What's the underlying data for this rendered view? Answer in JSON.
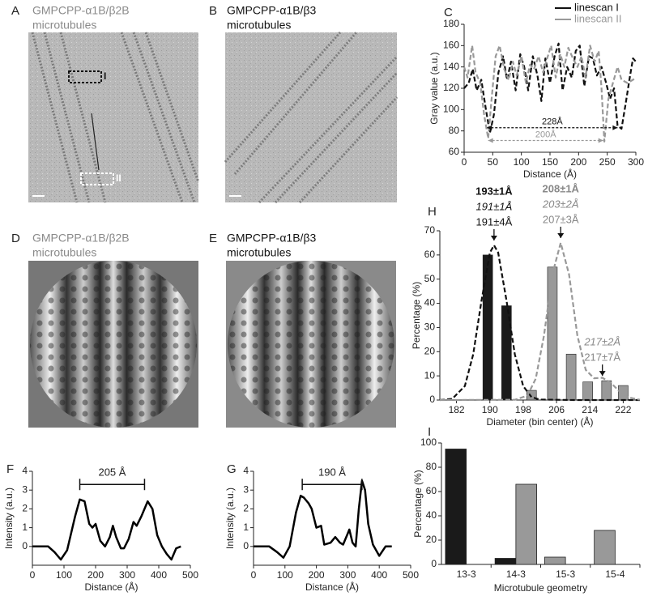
{
  "images": [
    {
      "label": "A",
      "title": [
        "GMPCPP-α1B/β2B",
        "microtubules"
      ],
      "markers": [
        "I",
        "II"
      ]
    },
    {
      "label": "B",
      "title": [
        "GMPCPP-α1B/β3",
        "microtubules"
      ]
    },
    {
      "label": "D",
      "title": [
        "GMPCPP-α1B/β2B",
        "microtubules"
      ]
    },
    {
      "label": "E",
      "title": [
        "GMPCPP-α1B/β3",
        "microtubules"
      ]
    }
  ],
  "chart_data": [
    {
      "type": "line",
      "label": "C",
      "xlabel": "Distance (Å)",
      "ylabel": "Gray value (a.u.)",
      "xlim": [
        0,
        300
      ],
      "ylim": [
        60,
        180
      ],
      "xticks": [
        0,
        50,
        100,
        150,
        200,
        250,
        300
      ],
      "yticks": [
        60,
        80,
        100,
        120,
        140,
        160,
        180
      ],
      "legend": "top-right",
      "series": [
        {
          "name": "linescan I",
          "color": "#111111",
          "dashed": true,
          "x": [
            0,
            8,
            15,
            22,
            30,
            38,
            45,
            52,
            60,
            68,
            75,
            82,
            90,
            98,
            105,
            112,
            120,
            128,
            135,
            142,
            150,
            158,
            165,
            172,
            180,
            188,
            195,
            202,
            210,
            218,
            225,
            232,
            240,
            248,
            255,
            262,
            268,
            275,
            282,
            290,
            295,
            300
          ],
          "values": [
            120,
            125,
            138,
            118,
            128,
            100,
            78,
            95,
            135,
            150,
            128,
            145,
            118,
            152,
            140,
            118,
            150,
            132,
            108,
            148,
            125,
            150,
            162,
            118,
            140,
            130,
            155,
            160,
            122,
            150,
            148,
            132,
            140,
            125,
            110,
            120,
            85,
            82,
            105,
            132,
            148,
            145
          ]
        },
        {
          "name": "linescan II",
          "color": "#999999",
          "dashed": true,
          "x": [
            0,
            6,
            14,
            20,
            28,
            35,
            42,
            48,
            55,
            62,
            70,
            78,
            85,
            92,
            100,
            108,
            115,
            122,
            130,
            138,
            145,
            152,
            160,
            168,
            175,
            182,
            190,
            198,
            205,
            212,
            220,
            228,
            235,
            240,
            245,
            252,
            260,
            268,
            275,
            285,
            295,
            300
          ],
          "values": [
            140,
            130,
            160,
            135,
            125,
            95,
            73,
            110,
            150,
            160,
            138,
            128,
            145,
            132,
            150,
            125,
            142,
            138,
            150,
            135,
            148,
            160,
            130,
            152,
            140,
            158,
            148,
            140,
            150,
            130,
            160,
            145,
            155,
            120,
            70,
            110,
            125,
            140,
            128,
            125,
            128,
            130
          ]
        }
      ],
      "annotations": [
        {
          "text": "228Å",
          "color": "#111111",
          "x": [
            40,
            268
          ],
          "y": 83
        },
        {
          "text": "200Å",
          "color": "#999999",
          "x": [
            42,
            243
          ],
          "y": 71
        }
      ]
    },
    {
      "type": "line",
      "label": "F",
      "xlabel": "Distance (Å)",
      "ylabel": "Intensity (a.u.)",
      "xlim": [
        0,
        500
      ],
      "ylim": [
        -1,
        4
      ],
      "xticks": [
        0,
        100,
        200,
        300,
        400,
        500
      ],
      "yticks": [
        0,
        1,
        2,
        3,
        4
      ],
      "series": [
        {
          "color": "#000000",
          "x": [
            0,
            50,
            70,
            90,
            110,
            135,
            150,
            165,
            180,
            190,
            200,
            215,
            230,
            245,
            255,
            265,
            280,
            290,
            305,
            320,
            330,
            345,
            365,
            380,
            395,
            410,
            425,
            440,
            455,
            470
          ],
          "values": [
            0,
            0,
            -0.3,
            -0.7,
            -0.2,
            1.6,
            2.5,
            2.4,
            1.2,
            1.0,
            1.2,
            0.3,
            0,
            0.5,
            1.1,
            0.5,
            -0.1,
            -0.1,
            0.4,
            1.3,
            1.1,
            1.6,
            2.4,
            2.0,
            0.6,
            0,
            -0.4,
            -0.7,
            -0.1,
            0
          ]
        }
      ],
      "annotations": [
        {
          "text": "205 Å",
          "x": [
            150,
            355
          ],
          "y": 3.3
        }
      ]
    },
    {
      "type": "line",
      "label": "G",
      "xlabel": "Distance (Å)",
      "ylabel": "Intensity (a.u.)",
      "xlim": [
        0,
        500
      ],
      "ylim": [
        -1,
        4
      ],
      "xticks": [
        0,
        100,
        200,
        300,
        400,
        500
      ],
      "yticks": [
        0,
        1,
        2,
        3,
        4
      ],
      "series": [
        {
          "color": "#000000",
          "x": [
            0,
            50,
            75,
            95,
            115,
            135,
            150,
            160,
            175,
            185,
            200,
            215,
            225,
            245,
            260,
            275,
            285,
            300,
            305,
            315,
            325,
            335,
            345,
            355,
            365,
            380,
            400,
            420,
            440
          ],
          "values": [
            0,
            0,
            -0.3,
            -0.6,
            0,
            1.8,
            2.7,
            2.6,
            2.3,
            2.0,
            1.0,
            1.1,
            0.1,
            0.2,
            0.5,
            0.2,
            0.1,
            0.7,
            0.9,
            0.2,
            0.0,
            2.0,
            3.5,
            3.0,
            1.2,
            0.1,
            -0.5,
            0,
            0
          ]
        }
      ],
      "annotations": [
        {
          "text": "190 Å",
          "x": [
            155,
            345
          ],
          "y": 3.3
        }
      ]
    },
    {
      "type": "bar",
      "label": "H",
      "xlabel": "Diameter (bin center) (Å)",
      "ylabel": "Percentage (%)",
      "xlim": [
        178,
        226
      ],
      "ylim": [
        0,
        70
      ],
      "xticks": [
        182,
        190,
        198,
        206,
        214,
        222
      ],
      "yticks": [
        0,
        10,
        20,
        30,
        40,
        50,
        60,
        70
      ],
      "series": [
        {
          "kind": "bar",
          "color": "#1a1a1a",
          "x": [
            189.5,
            194
          ],
          "values": [
            60,
            39
          ]
        },
        {
          "kind": "bar",
          "color": "#999999",
          "x": [
            200,
            205,
            209.5,
            213.5,
            218,
            222
          ],
          "values": [
            4,
            55,
            19,
            7.5,
            8,
            6
          ]
        },
        {
          "kind": "line",
          "dashed": true,
          "color": "#111111",
          "x": [
            178,
            181,
            184,
            186,
            188,
            190,
            191,
            192,
            194,
            196,
            198,
            200,
            202,
            210,
            226
          ],
          "values": [
            0,
            0.5,
            5.8,
            18.9,
            41.2,
            61,
            64,
            61,
            41.2,
            18.9,
            5.8,
            1.2,
            0.2,
            0,
            0
          ]
        },
        {
          "kind": "line",
          "dashed": true,
          "color": "#999999",
          "x": [
            178,
            196,
            199,
            201,
            203,
            205,
            207,
            209,
            211,
            213,
            215,
            217,
            219,
            221,
            223,
            226
          ],
          "values": [
            0,
            0.1,
            1.8,
            8.8,
            26.7,
            52,
            65,
            52,
            26.7,
            12.5,
            9,
            9.2,
            7.2,
            3.7,
            1.2,
            0.1
          ]
        }
      ],
      "annotations": [
        {
          "text": [
            "193±1Å",
            "191±1Å",
            "191±4Å"
          ],
          "styles": [
            "bold",
            "italic",
            "normal"
          ],
          "color": "#111111",
          "x": 191,
          "y": 66
        },
        {
          "text": [
            "208±1Å",
            "203±2Å",
            "207±3Å"
          ],
          "styles": [
            "bold",
            "italic",
            "normal"
          ],
          "color": "#888888",
          "x": 207,
          "y": 67
        },
        {
          "text": [
            "217±2Å",
            "217±7Å"
          ],
          "styles": [
            "italic",
            "normal"
          ],
          "color": "#888888",
          "x": 217,
          "y": 10
        }
      ]
    },
    {
      "type": "grouped-bar",
      "label": "I",
      "xlabel": "Microtubule geometry",
      "ylabel": "Percentage (%)",
      "ylim": [
        0,
        100
      ],
      "yticks": [
        0,
        20,
        40,
        60,
        80,
        100
      ],
      "categories": [
        "13-3",
        "14-3",
        "15-3",
        "15-4"
      ],
      "series": [
        {
          "color": "#1a1a1a",
          "values": [
            95,
            5,
            null,
            null
          ]
        },
        {
          "color": "#999999",
          "values": [
            null,
            66,
            6,
            28
          ]
        }
      ]
    }
  ]
}
